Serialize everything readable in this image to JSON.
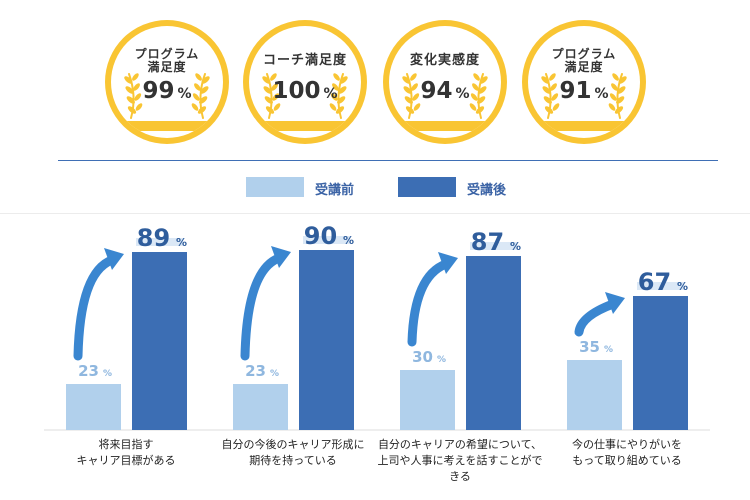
{
  "badges": [
    {
      "title_lines": [
        "プログラム",
        "満足度"
      ],
      "value": "99",
      "unit": "%"
    },
    {
      "title_lines": [
        "コーチ満足度"
      ],
      "value": "100",
      "unit": "%"
    },
    {
      "title_lines": [
        "変化実感度"
      ],
      "value": "94",
      "unit": "%"
    },
    {
      "title_lines": [
        "プログラム",
        "満足度"
      ],
      "value": "91",
      "unit": "%"
    }
  ],
  "colors": {
    "badge_gold": "#f9c533",
    "before": "#b1d0ec",
    "after": "#3c6eb4",
    "arrow": "#3a86d0",
    "divider": "#3f6fb5"
  },
  "legend": {
    "before_label": "受講前",
    "after_label": "受講後"
  },
  "chart_data": {
    "type": "bar",
    "categories": [
      "将来目指す\nキャリア目標がある",
      "自分の今後のキャリア形成に\n期待を持っている",
      "自分のキャリアの希望について、\n上司や人事に考えを話すことができる",
      "今の仕事にやりがいを\nもって取り組めている"
    ],
    "series": [
      {
        "name": "受講前",
        "values": [
          23,
          23,
          30,
          35
        ]
      },
      {
        "name": "受講後",
        "values": [
          89,
          90,
          87,
          67
        ]
      }
    ],
    "value_unit": "%",
    "ylim": [
      0,
      100
    ],
    "grid": false,
    "legend_position": "top-center"
  }
}
